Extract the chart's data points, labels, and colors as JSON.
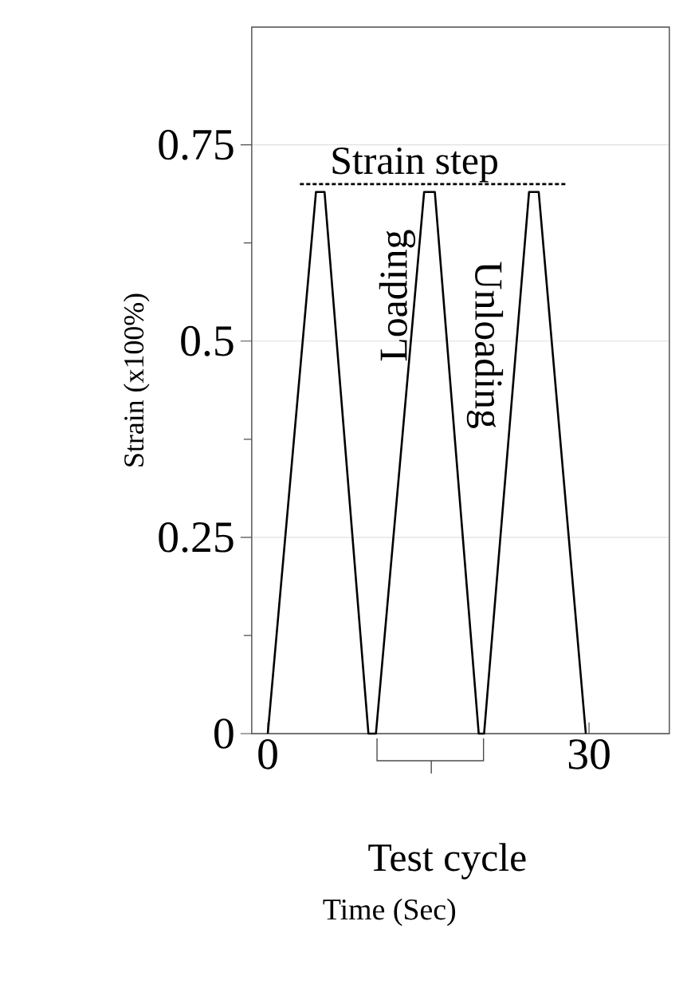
{
  "chart_data": {
    "type": "line",
    "xlabel": "Time (Sec)",
    "ylabel": "Strain (x100%)",
    "xlim": [
      -1.5,
      37.5
    ],
    "ylim": [
      0,
      0.9
    ],
    "xticks": [
      0,
      30
    ],
    "yticks": [
      0,
      0.25,
      0.5,
      0.75
    ],
    "grid": "y",
    "marker": "none",
    "series": [
      {
        "color": "#000000",
        "x": [
          0,
          4.5,
          5.3,
          9.4,
          10.1,
          14.6,
          15.6,
          19.7,
          20.2,
          24.4,
          25.3,
          29.7
        ],
        "values": [
          0,
          0.69,
          0.69,
          0,
          0,
          0.69,
          0.69,
          0,
          0,
          0.69,
          0.69,
          0
        ]
      },
      {
        "color": "#000000",
        "line_style": "dashed",
        "x": [
          3,
          28
        ],
        "values": [
          0.7,
          0.7
        ]
      }
    ],
    "annotations": [
      {
        "text": "Strain step",
        "x": 13.7,
        "y": 0.7
      },
      "Loading",
      "Unloading",
      "Test cycle"
    ]
  }
}
